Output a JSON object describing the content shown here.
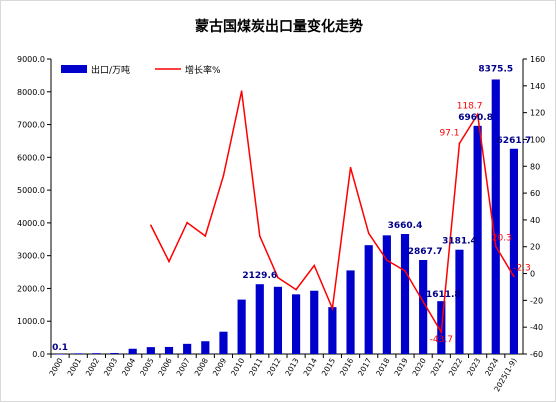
{
  "chart_data": {
    "type": "bar",
    "title": "蒙古国煤炭出口量变化走势",
    "categories": [
      "2000",
      "2001",
      "2002",
      "2003",
      "2004",
      "2005",
      "2006",
      "2007",
      "2008",
      "2009",
      "2010",
      "2011",
      "2012",
      "2013",
      "2014",
      "2015",
      "2016",
      "2017",
      "2018",
      "2019",
      "2020",
      "2021",
      "2022",
      "2023",
      "2024",
      "2025(1-9)"
    ],
    "series": [
      {
        "name": "出口/万吨",
        "type": "bar",
        "axis": "left",
        "color": "#0000cc",
        "values": [
          0.1,
          20,
          25,
          30,
          160,
          210,
          215,
          310,
          390,
          680,
          1660,
          2129.6,
          2050,
          1820,
          1930,
          1430,
          2550,
          3320,
          3620,
          3660.4,
          2867.7,
          1611.8,
          3181.4,
          6960.8,
          8375.5,
          6261.7
        ]
      },
      {
        "name": "增长率%",
        "type": "line",
        "axis": "right",
        "color": "#ff0000",
        "values": [
          null,
          null,
          null,
          null,
          null,
          36,
          9,
          38,
          28,
          73,
          136,
          28,
          -3,
          -12,
          6,
          -26,
          79,
          30,
          10,
          2,
          -21,
          -43.7,
          97.1,
          118.7,
          20.3,
          -2.3
        ]
      }
    ],
    "y_left": {
      "ylim": [
        0,
        9000
      ],
      "ticks": [
        "0.0",
        "1000.0",
        "2000.0",
        "3000.0",
        "4000.0",
        "5000.0",
        "6000.0",
        "7000.0",
        "8000.0",
        "9000.0"
      ]
    },
    "y_right": {
      "ylim": [
        -60,
        160
      ],
      "ticks": [
        "-60",
        "-40",
        "-20",
        "0",
        "20",
        "40",
        "60",
        "80",
        "100",
        "120",
        "140",
        "160"
      ]
    },
    "bar_labels": [
      {
        "index": 0,
        "text": "0.1"
      },
      {
        "index": 11,
        "text": "2129.6"
      },
      {
        "index": 19,
        "text": "3660.4"
      },
      {
        "index": 20,
        "text": "2867.7"
      },
      {
        "index": 21,
        "text": "1611.8"
      },
      {
        "index": 22,
        "text": "3181.4"
      },
      {
        "index": 23,
        "text": "6960.8"
      },
      {
        "index": 24,
        "text": "8375.5"
      },
      {
        "index": 25,
        "text": "6261.7"
      }
    ],
    "line_labels": [
      {
        "index": 21,
        "text": "-43.7"
      },
      {
        "index": 22,
        "text": "97.1"
      },
      {
        "index": 23,
        "text": "118.7"
      },
      {
        "index": 24,
        "text": "20.3"
      },
      {
        "index": 25,
        "text": "-2.3"
      }
    ],
    "legend_placement": "top-left",
    "grid": false
  }
}
